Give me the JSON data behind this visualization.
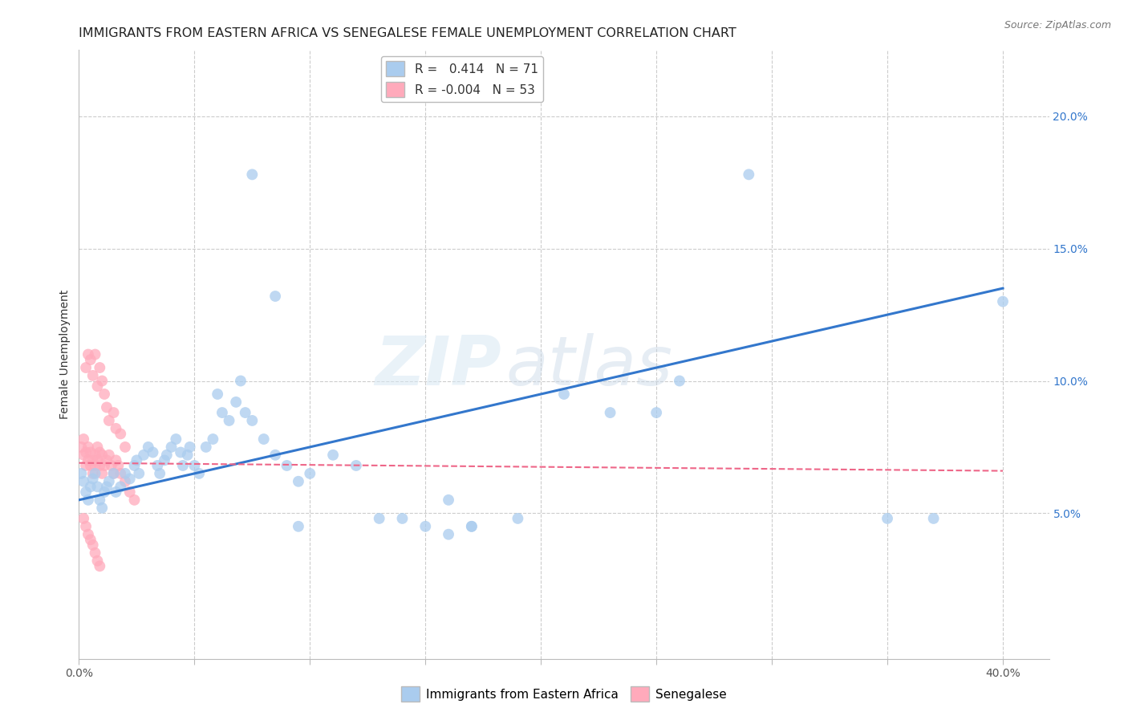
{
  "title": "IMMIGRANTS FROM EASTERN AFRICA VS SENEGALESE FEMALE UNEMPLOYMENT CORRELATION CHART",
  "source": "Source: ZipAtlas.com",
  "ylabel": "Female Unemployment",
  "blue_R": 0.414,
  "blue_N": 71,
  "pink_R": -0.004,
  "pink_N": 53,
  "y_ticks": [
    0.05,
    0.1,
    0.15,
    0.2
  ],
  "xlim": [
    0.0,
    0.42
  ],
  "ylim": [
    -0.005,
    0.225
  ],
  "blue_scatter_x": [
    0.001,
    0.002,
    0.003,
    0.004,
    0.005,
    0.006,
    0.007,
    0.008,
    0.009,
    0.01,
    0.011,
    0.012,
    0.013,
    0.015,
    0.016,
    0.018,
    0.02,
    0.022,
    0.024,
    0.025,
    0.026,
    0.028,
    0.03,
    0.032,
    0.034,
    0.035,
    0.037,
    0.038,
    0.04,
    0.042,
    0.044,
    0.045,
    0.047,
    0.048,
    0.05,
    0.052,
    0.055,
    0.058,
    0.06,
    0.062,
    0.065,
    0.068,
    0.07,
    0.072,
    0.075,
    0.08,
    0.085,
    0.09,
    0.095,
    0.1,
    0.11,
    0.12,
    0.13,
    0.14,
    0.15,
    0.16,
    0.17,
    0.19,
    0.21,
    0.23,
    0.075,
    0.085,
    0.095,
    0.16,
    0.17,
    0.25,
    0.26,
    0.29,
    0.35,
    0.37,
    0.4
  ],
  "blue_scatter_y": [
    0.065,
    0.062,
    0.058,
    0.055,
    0.06,
    0.063,
    0.065,
    0.06,
    0.055,
    0.052,
    0.058,
    0.06,
    0.062,
    0.065,
    0.058,
    0.06,
    0.065,
    0.063,
    0.068,
    0.07,
    0.065,
    0.072,
    0.075,
    0.073,
    0.068,
    0.065,
    0.07,
    0.072,
    0.075,
    0.078,
    0.073,
    0.068,
    0.072,
    0.075,
    0.068,
    0.065,
    0.075,
    0.078,
    0.095,
    0.088,
    0.085,
    0.092,
    0.1,
    0.088,
    0.085,
    0.078,
    0.072,
    0.068,
    0.062,
    0.065,
    0.072,
    0.068,
    0.048,
    0.048,
    0.045,
    0.042,
    0.045,
    0.048,
    0.095,
    0.088,
    0.178,
    0.132,
    0.045,
    0.055,
    0.045,
    0.088,
    0.1,
    0.178,
    0.048,
    0.048,
    0.13
  ],
  "pink_scatter_x": [
    0.001,
    0.002,
    0.002,
    0.003,
    0.003,
    0.004,
    0.004,
    0.005,
    0.005,
    0.006,
    0.006,
    0.007,
    0.007,
    0.008,
    0.008,
    0.009,
    0.009,
    0.01,
    0.01,
    0.011,
    0.012,
    0.013,
    0.014,
    0.015,
    0.016,
    0.017,
    0.018,
    0.02,
    0.022,
    0.024,
    0.003,
    0.004,
    0.005,
    0.006,
    0.007,
    0.008,
    0.009,
    0.01,
    0.011,
    0.012,
    0.013,
    0.015,
    0.016,
    0.018,
    0.02,
    0.002,
    0.003,
    0.004,
    0.005,
    0.006,
    0.007,
    0.008,
    0.009
  ],
  "pink_scatter_y": [
    0.075,
    0.072,
    0.078,
    0.068,
    0.073,
    0.07,
    0.075,
    0.068,
    0.073,
    0.065,
    0.07,
    0.072,
    0.068,
    0.075,
    0.07,
    0.068,
    0.073,
    0.072,
    0.065,
    0.068,
    0.07,
    0.072,
    0.068,
    0.065,
    0.07,
    0.068,
    0.065,
    0.062,
    0.058,
    0.055,
    0.105,
    0.11,
    0.108,
    0.102,
    0.11,
    0.098,
    0.105,
    0.1,
    0.095,
    0.09,
    0.085,
    0.088,
    0.082,
    0.08,
    0.075,
    0.048,
    0.045,
    0.042,
    0.04,
    0.038,
    0.035,
    0.032,
    0.03
  ],
  "blue_line_x": [
    0.0,
    0.4
  ],
  "blue_line_y": [
    0.055,
    0.135
  ],
  "pink_line_x": [
    0.0,
    0.4
  ],
  "pink_line_y": [
    0.069,
    0.066
  ],
  "blue_line_color": "#3377CC",
  "pink_line_color": "#EE6688",
  "blue_dot_color": "#AACCEE",
  "pink_dot_color": "#FFAABB",
  "grid_color": "#CCCCCC",
  "watermark_zip": "ZIP",
  "watermark_atlas": "atlas",
  "legend_blue_label": "Immigrants from Eastern Africa",
  "legend_pink_label": "Senegalese",
  "background_color": "#FFFFFF",
  "title_fontsize": 11.5,
  "axis_label_fontsize": 10,
  "tick_fontsize": 10
}
